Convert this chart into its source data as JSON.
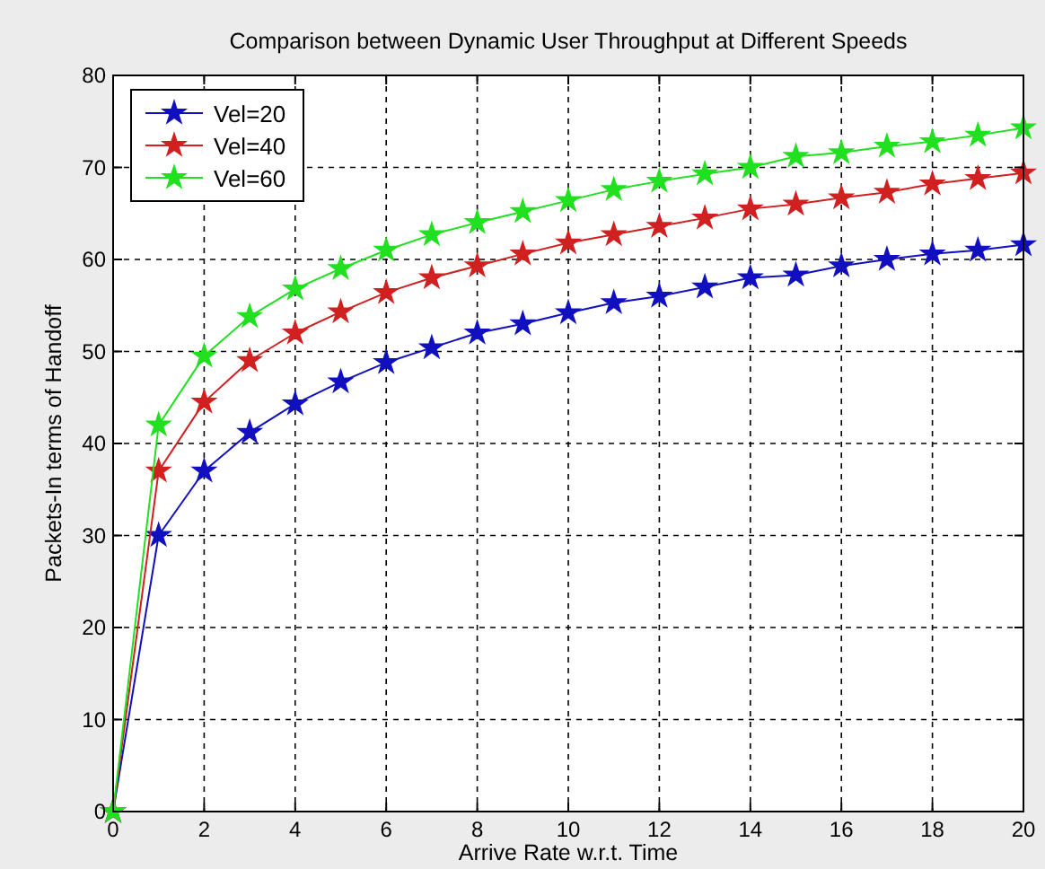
{
  "chart_data": {
    "type": "line",
    "title": "Comparison between Dynamic User Throughput at Different Speeds",
    "xlabel": "Arrive Rate w.r.t. Time",
    "ylabel": "Packets-In terms of Handoff",
    "x": [
      0,
      1,
      2,
      3,
      4,
      5,
      6,
      7,
      8,
      9,
      10,
      11,
      12,
      13,
      14,
      15,
      16,
      17,
      18,
      19,
      20
    ],
    "series": [
      {
        "name": "Vel=20",
        "color": "#1010c0",
        "values": [
          0,
          30,
          37,
          41.2,
          44.3,
          46.7,
          48.8,
          50.4,
          52,
          53,
          54.2,
          55.3,
          56,
          57,
          58,
          58.3,
          59.3,
          60,
          60.6,
          61,
          61.6
        ]
      },
      {
        "name": "Vel=40",
        "color": "#d02020",
        "values": [
          0,
          37,
          44.5,
          49,
          52,
          54.3,
          56.4,
          58,
          59.3,
          60.6,
          61.8,
          62.7,
          63.6,
          64.5,
          65.5,
          66,
          66.7,
          67.3,
          68.2,
          68.8,
          69.4
        ]
      },
      {
        "name": "Vel=60",
        "color": "#20e020",
        "values": [
          0,
          42,
          49.5,
          53.8,
          56.8,
          59,
          61,
          62.7,
          64,
          65.2,
          66.4,
          67.6,
          68.5,
          69.3,
          70,
          71.2,
          71.6,
          72.3,
          72.8,
          73.5,
          74.3
        ]
      }
    ],
    "xlim": [
      0,
      20
    ],
    "xticks": [
      0,
      2,
      4,
      6,
      8,
      10,
      12,
      14,
      16,
      18,
      20
    ],
    "ylim": [
      0,
      80
    ],
    "yticks": [
      0,
      10,
      20,
      30,
      40,
      50,
      60,
      70,
      80
    ],
    "grid": true,
    "legend": "top left",
    "marker": "star",
    "line_style": "solid"
  }
}
